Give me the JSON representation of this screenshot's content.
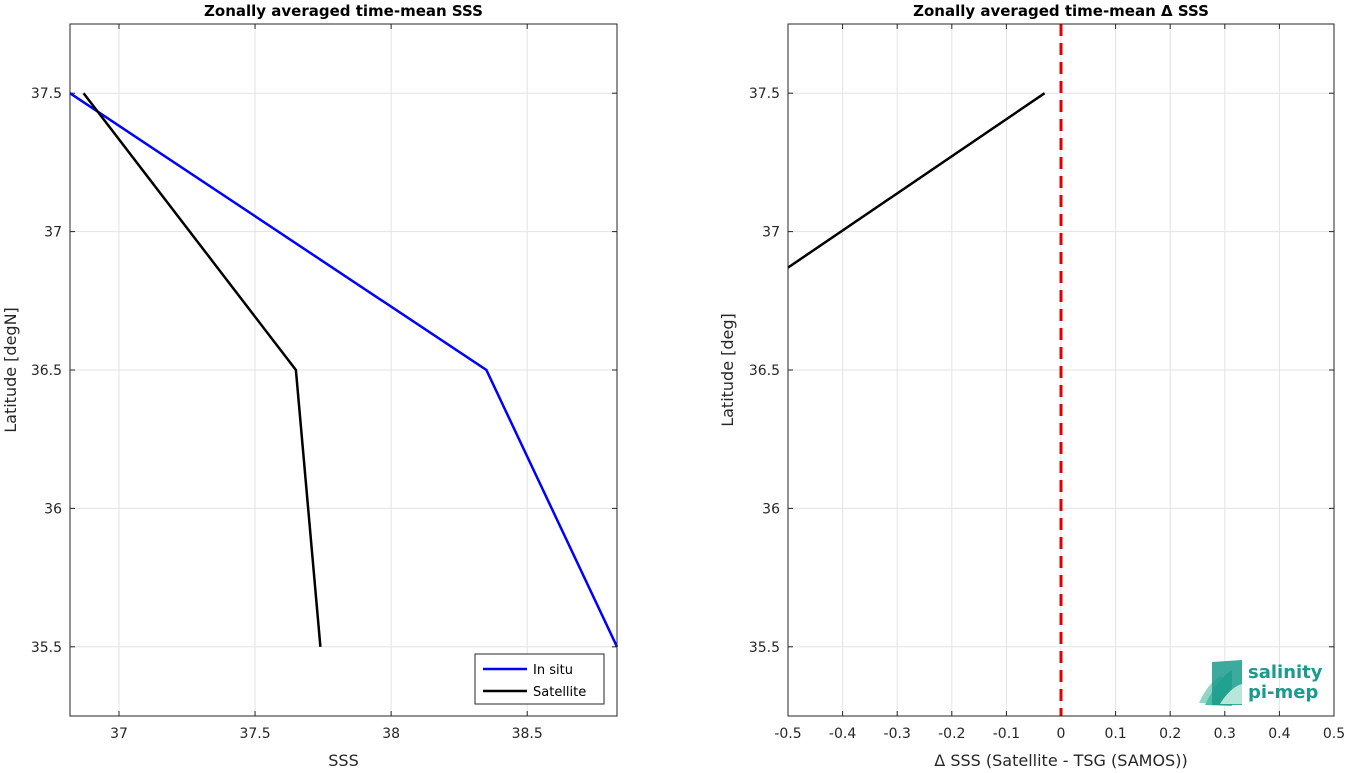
{
  "chart_data": [
    {
      "type": "line",
      "title": "Zonally averaged time-mean SSS",
      "xlabel": "SSS",
      "ylabel": "Latitude [degN]",
      "xlim": [
        36.82,
        38.83
      ],
      "ylim": [
        35.25,
        37.75
      ],
      "xticks": [
        "37",
        "37.5",
        "38",
        "38.5"
      ],
      "xtick_values": [
        37,
        37.5,
        38,
        38.5
      ],
      "yticks": [
        "35.5",
        "36",
        "36.5",
        "37",
        "37.5"
      ],
      "ytick_values": [
        35.5,
        36,
        36.5,
        37,
        37.5
      ],
      "grid": true,
      "legend_position": "bottom-right",
      "series": [
        {
          "name": "In situ",
          "color": "#0000ff",
          "x": [
            36.82,
            38.35,
            38.83
          ],
          "y": [
            37.5,
            36.5,
            35.5
          ]
        },
        {
          "name": "Satellite",
          "color": "#000000",
          "x": [
            36.87,
            37.65,
            37.74
          ],
          "y": [
            37.5,
            36.5,
            35.5
          ]
        }
      ]
    },
    {
      "type": "line",
      "title": "Zonally averaged time-mean Δ SSS",
      "xlabel": "Δ SSS (Satellite - TSG (SAMOS))",
      "ylabel": "Latitude [deg]",
      "xlim": [
        -0.5,
        0.5
      ],
      "ylim": [
        35.25,
        37.75
      ],
      "xticks": [
        "-0.5",
        "-0.4",
        "-0.3",
        "-0.2",
        "-0.1",
        "0",
        "0.1",
        "0.2",
        "0.3",
        "0.4",
        "0.5"
      ],
      "xtick_values": [
        -0.5,
        -0.4,
        -0.3,
        -0.2,
        -0.1,
        0,
        0.1,
        0.2,
        0.3,
        0.4,
        0.5
      ],
      "yticks": [
        "35.5",
        "36",
        "36.5",
        "37",
        "37.5"
      ],
      "ytick_values": [
        35.5,
        36,
        36.5,
        37,
        37.5
      ],
      "grid": true,
      "reference_line": {
        "x": 0,
        "color": "#e00000",
        "style": "dashed"
      },
      "series": [
        {
          "color": "#000000",
          "x": [
            -0.5,
            -0.03
          ],
          "y": [
            36.87,
            37.5
          ]
        }
      ]
    }
  ],
  "logo": {
    "line1": "salinity",
    "line2": "pi-mep",
    "color": "#1a9b8c"
  }
}
